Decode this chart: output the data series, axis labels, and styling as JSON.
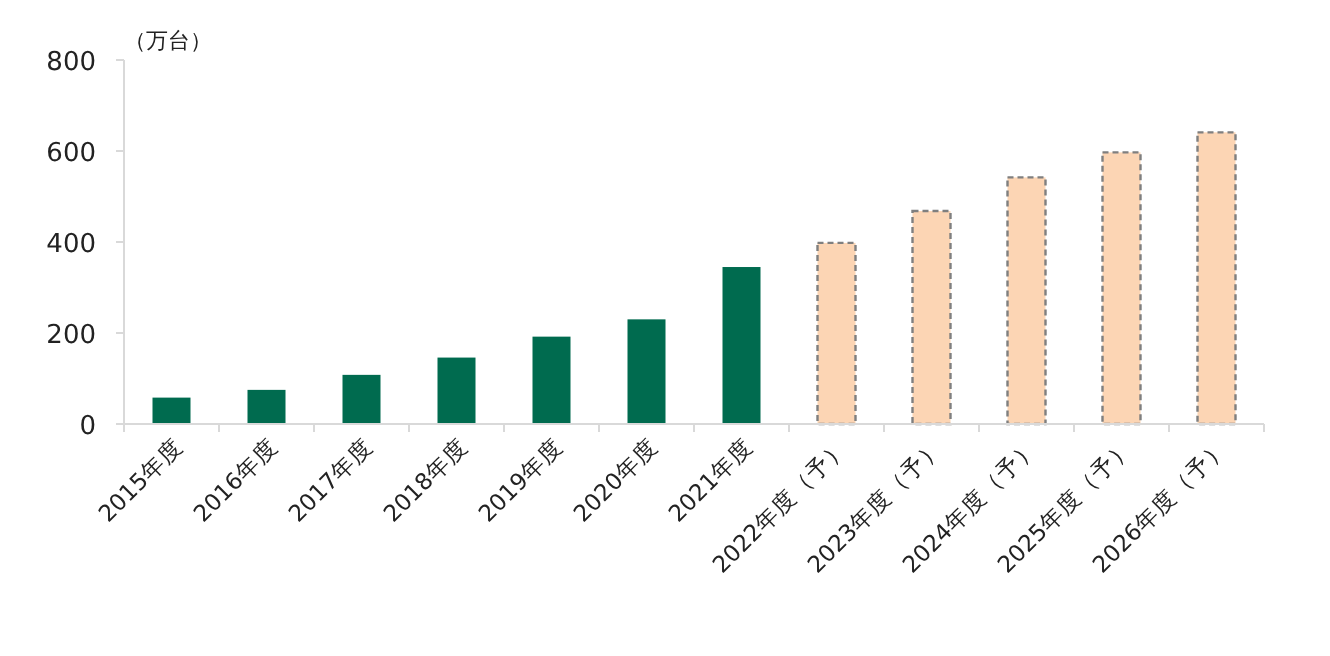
{
  "chart_data": {
    "type": "bar",
    "ylabel": "（万台）",
    "categories": [
      "2015年度",
      "2016年度",
      "2017年度",
      "2018年度",
      "2019年度",
      "2020年度",
      "2021年度",
      "2022年度（予）",
      "2023年度（予）",
      "2024年度（予）",
      "2025年度（予）",
      "2026年度（予）"
    ],
    "series": [
      {
        "color": "#006b4f",
        "values": [
          58,
          75,
          108,
          146,
          192,
          230,
          345,
          null,
          null,
          null,
          null,
          null
        ]
      },
      {
        "color": "#fcd5b4",
        "line_style": "dashed",
        "values": [
          null,
          null,
          null,
          null,
          null,
          null,
          null,
          398,
          468,
          542,
          597,
          641
        ]
      }
    ],
    "ylim": [
      0,
      800
    ],
    "yticks": [
      0,
      200,
      400,
      600,
      800
    ]
  }
}
